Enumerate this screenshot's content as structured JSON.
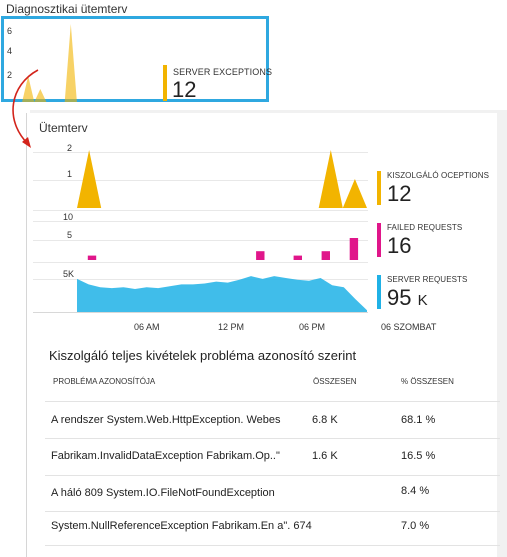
{
  "mini": {
    "title": "Diagnosztikai ütemterv",
    "y_ticks": [
      "6",
      "4",
      "2"
    ],
    "kpi": {
      "label": "SERVER EXCEPTIONS",
      "value": "12",
      "color": "#f2b400"
    }
  },
  "blade": {
    "title": "Ütemterv",
    "charts": [
      {
        "y_ticks": [
          "2",
          "1"
        ]
      },
      {
        "y_ticks": [
          "10",
          "5"
        ]
      },
      {
        "y_ticks": [
          "5K"
        ]
      }
    ],
    "x_ticks": [
      "06 AM",
      "12 PM",
      "06 PM",
      "06 SZOMBAT"
    ],
    "kpis": [
      {
        "label": "KISZOLGÁLÓ OCEPTIONS",
        "value": "12",
        "unit": "",
        "color": "#f2b400"
      },
      {
        "label": "FAILED REQUESTS",
        "value": "16",
        "unit": "",
        "color": "#e0168a"
      },
      {
        "label": "SERVER REQUESTS",
        "value": "95",
        "unit": "K",
        "color": "#1fb1e6"
      }
    ]
  },
  "table": {
    "title": "Kiszolgáló teljes kivételek probléma azonosító szerint",
    "headers": {
      "problem_id": "PROBLÉMA AZONOSÍTÓJA",
      "total": "ÖSSZESEN",
      "percent": "% ÖSSZESEN"
    },
    "rows": [
      {
        "problem_id": "A rendszer System.Web.HttpException. Webes",
        "total": "6.8 K",
        "percent": "68.1 %"
      },
      {
        "problem_id": "Fabrikam.InvalidDataException Fabrikam.Op..\"",
        "total": "1.6 K",
        "percent": "16.5 %"
      },
      {
        "problem_id": "A háló 809 System.IO.FileNotFoundException",
        "total": "",
        "percent": "8.4 %"
      },
      {
        "problem_id": "System.NullReferenceException Fabrikam.En a\". 674",
        "total": "",
        "percent": "7.0 %"
      }
    ]
  },
  "chart_data": [
    {
      "type": "area",
      "title": "",
      "ylim": [
        0,
        6
      ],
      "series": [
        {
          "name": "SERVER EXCEPTIONS",
          "values": [
            0,
            0,
            2,
            0,
            1,
            0,
            0,
            0,
            0,
            6,
            0,
            0,
            0,
            0,
            0,
            0,
            0,
            0,
            0,
            0,
            0,
            0,
            0,
            0
          ]
        }
      ]
    },
    {
      "type": "area",
      "title": "",
      "ylim": [
        0,
        2
      ],
      "series": [
        {
          "name": "KISZOLGÁLÓ OCEPTIONS",
          "values": [
            0,
            2,
            0,
            0,
            0,
            0,
            0,
            0,
            0,
            0,
            0,
            0,
            0,
            0,
            0,
            0,
            0,
            0,
            0,
            0,
            0,
            2,
            0,
            1,
            0
          ]
        }
      ]
    },
    {
      "type": "bar",
      "title": "",
      "ylim": [
        0,
        10
      ],
      "series": [
        {
          "name": "FAILED REQUESTS",
          "values": [
            0,
            1,
            0,
            0,
            0,
            0,
            0,
            0,
            0,
            0,
            0,
            0,
            0,
            0,
            0,
            0,
            0,
            0,
            0,
            2,
            0,
            0,
            0,
            1,
            0,
            0,
            2,
            0,
            0,
            5,
            0
          ]
        }
      ]
    },
    {
      "type": "area",
      "title": "",
      "ylim": [
        0,
        5
      ],
      "series": [
        {
          "name": "SERVER REQUESTS",
          "values": [
            3.6,
            3.0,
            2.7,
            2.6,
            2.7,
            2.5,
            2.7,
            2.6,
            2.8,
            3.0,
            3.0,
            3.1,
            3.3,
            3.2,
            3.5,
            3.9,
            3.6,
            3.9,
            3.7,
            3.5,
            3.4,
            3.7,
            2.9,
            2.7,
            1.4,
            0.2
          ]
        }
      ]
    }
  ]
}
